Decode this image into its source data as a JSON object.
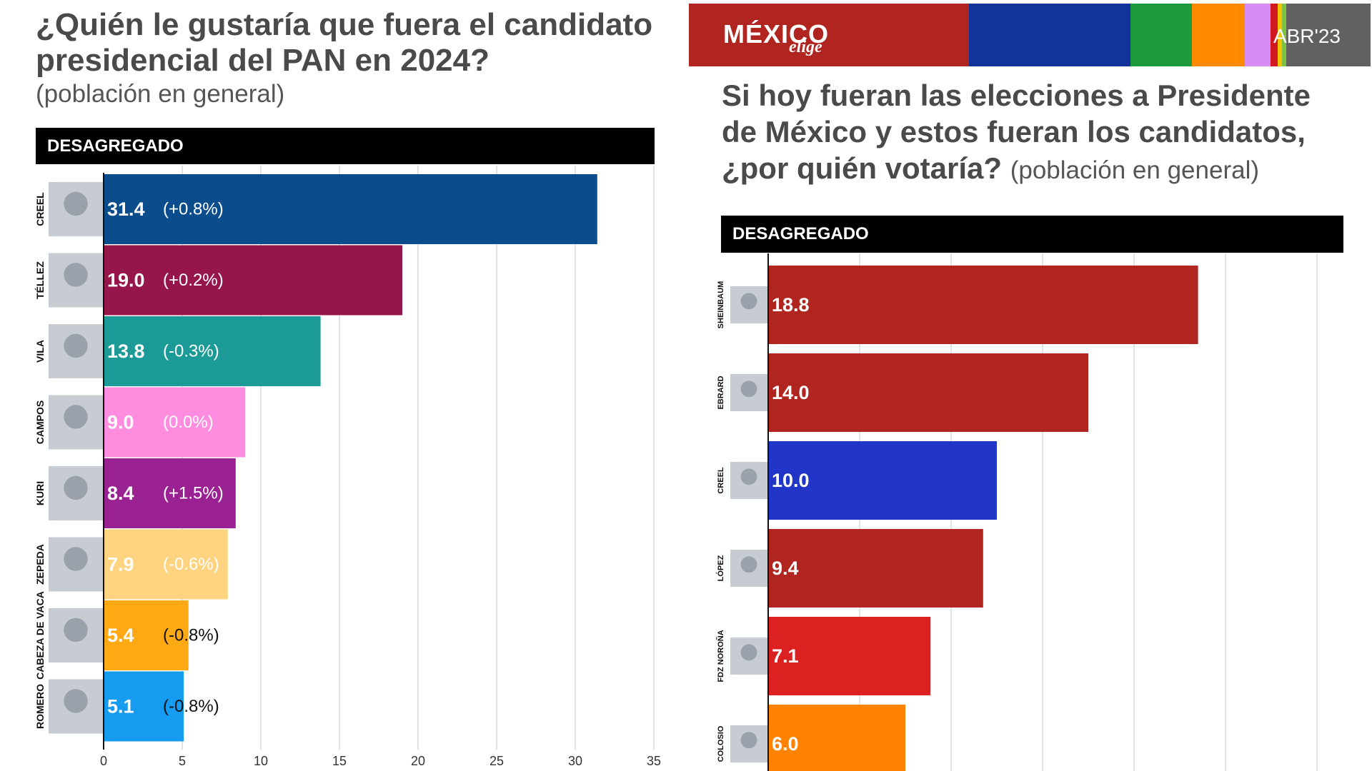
{
  "left": {
    "title": "¿Quién le gustaría que fuera el candidato presidencial del PAN en 2024?",
    "subtitle": "(población en general)",
    "header": "DESAGREGADO"
  },
  "right": {
    "brand": {
      "name": "MÉXICO",
      "tagline": "elige",
      "date": "ABR'23"
    },
    "title_bold": "Si hoy fueran las elecciones a Presidente de México y estos fueran los candidatos, ¿por quién votaría?",
    "title_sub": "(población en general)",
    "header": "DESAGREGADO"
  },
  "colors": {
    "brand_red": "#B0251F",
    "brand_blue": "#12349A",
    "brand_green": "#1E9A3E",
    "brand_orange": "#FF8A00",
    "brand_pink": "#D78BF5",
    "brand_yellow": "#F2C300",
    "brand_gray": "#616161"
  },
  "chart_data": [
    {
      "type": "bar",
      "orientation": "horizontal",
      "title": "¿Quién le gustaría que fuera el candidato presidencial del PAN en 2024?",
      "subtitle": "(población en general)",
      "categories": [
        "CREEL",
        "TÉLLEZ",
        "VILA",
        "CAMPOS",
        "KURI",
        "ZEPEDA",
        "CABEZA DE VACA",
        "ROMERO"
      ],
      "values": [
        31.4,
        19.0,
        13.8,
        9.0,
        8.4,
        7.9,
        5.4,
        5.1
      ],
      "value_labels": [
        "31.4",
        "19.0",
        "13.8",
        "9.0",
        "8.4",
        "7.9",
        "5.4",
        "5.1"
      ],
      "changes": [
        "(+0.8%)",
        "(+0.2%)",
        "(-0.3%)",
        "(0.0%)",
        "(+1.5%)",
        "(-0.6%)",
        "(-0.8%)",
        "(-0.8%)"
      ],
      "colors": [
        "#0B4C8C",
        "#96164C",
        "#1C9A98",
        "#FF8DDF",
        "#9A2192",
        "#FFD37F",
        "#FFAA14",
        "#159BF0"
      ],
      "x_ticks": [
        0,
        5,
        10,
        15,
        20,
        25,
        30,
        35
      ],
      "xlim": [
        0,
        35
      ],
      "grid": true
    },
    {
      "type": "bar",
      "orientation": "horizontal",
      "title": "Si hoy fueran las elecciones a Presidente de México y estos fueran los candidatos, ¿por quién votaría?",
      "subtitle": "(población en general)",
      "categories": [
        "SHEINBAUM",
        "EBRARD",
        "CREEL",
        "LÓPEZ",
        "FDZ NOROÑA",
        "COLOSIO"
      ],
      "values": [
        18.8,
        14.0,
        10.0,
        9.4,
        7.1,
        6.0
      ],
      "value_labels": [
        "18.8",
        "14.0",
        "10.0",
        "9.4",
        "7.1",
        "6.0"
      ],
      "colors": [
        "#B0251F",
        "#B0251F",
        "#2235C9",
        "#B0251F",
        "#DB2220",
        "#FF8200"
      ],
      "xlim": [
        0,
        25
      ],
      "grid": true
    }
  ]
}
